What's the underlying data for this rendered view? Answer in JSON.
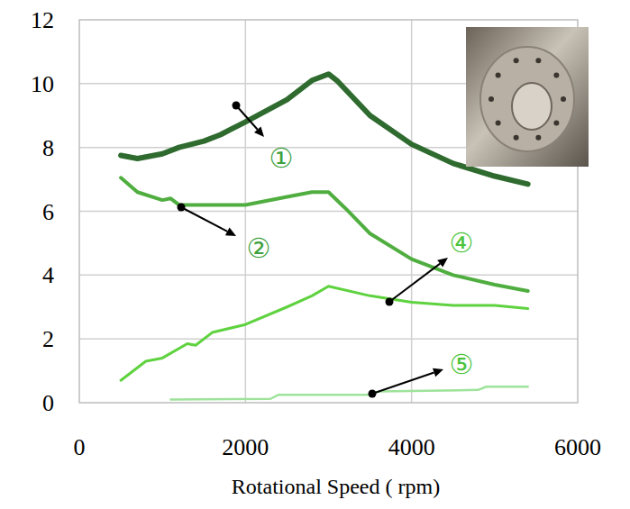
{
  "chart_data": {
    "type": "line",
    "x_label": "Rotational Speed ( rpm)",
    "xlim": [
      0,
      6000
    ],
    "xticks": [
      0,
      2000,
      4000,
      6000
    ],
    "ylim": [
      0,
      12
    ],
    "yticks": [
      0,
      2,
      4,
      6,
      8,
      10,
      12
    ],
    "grid": true,
    "series": [
      {
        "name": "①",
        "color": "#2f6b2f",
        "x": [
          500,
          700,
          1000,
          1200,
          1500,
          1700,
          2000,
          2500,
          2800,
          3000,
          3100,
          3500,
          4000,
          4500,
          5000,
          5400
        ],
        "values": [
          7.75,
          7.65,
          7.8,
          8.0,
          8.2,
          8.4,
          8.8,
          9.5,
          10.1,
          10.3,
          10.1,
          9.0,
          8.1,
          7.5,
          7.1,
          6.85
        ]
      },
      {
        "name": "②",
        "color": "#4fae3f",
        "x": [
          500,
          700,
          1000,
          1100,
          1200,
          1500,
          2000,
          2500,
          2800,
          3000,
          3200,
          3500,
          4000,
          4500,
          5000,
          5400
        ],
        "values": [
          7.05,
          6.6,
          6.35,
          6.4,
          6.2,
          6.2,
          6.2,
          6.45,
          6.6,
          6.6,
          6.1,
          5.3,
          4.5,
          4.0,
          3.7,
          3.5
        ]
      },
      {
        "name": "④",
        "color": "#5fd23f",
        "x": [
          500,
          800,
          1000,
          1300,
          1400,
          1600,
          2000,
          2500,
          2800,
          3000,
          3500,
          4000,
          4500,
          5000,
          5400
        ],
        "values": [
          0.7,
          1.3,
          1.4,
          1.85,
          1.8,
          2.2,
          2.45,
          3.0,
          3.35,
          3.65,
          3.35,
          3.15,
          3.05,
          3.05,
          2.95
        ]
      },
      {
        "name": "⑤",
        "color": "#9ee39a",
        "x": [
          1100,
          2300,
          2400,
          3500,
          3600,
          4800,
          4900,
          5400
        ],
        "values": [
          0.1,
          0.12,
          0.25,
          0.25,
          0.35,
          0.4,
          0.5,
          0.5
        ]
      }
    ]
  }
}
